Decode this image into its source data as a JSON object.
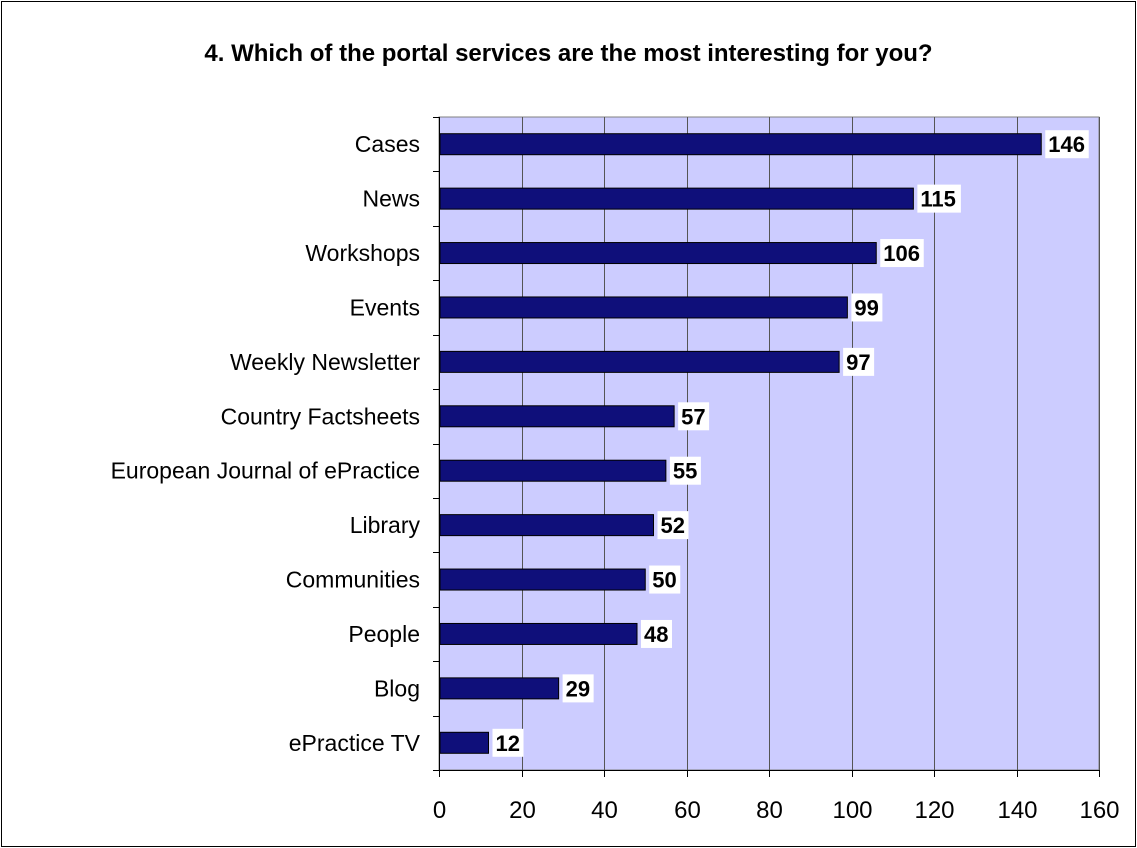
{
  "chart_data": {
    "type": "bar",
    "orientation": "horizontal",
    "title": "4. Which of the portal services are the most interesting for you?",
    "categories": [
      "Cases",
      "News",
      "Workshops",
      "Events",
      "Weekly Newsletter",
      "Country Factsheets",
      "European Journal of ePractice",
      "Library",
      "Communities",
      "People",
      "Blog",
      "ePractice TV"
    ],
    "values": [
      146,
      115,
      106,
      99,
      97,
      57,
      55,
      52,
      50,
      48,
      29,
      12
    ],
    "xlim": [
      0,
      160
    ],
    "x_ticks": [
      0,
      20,
      40,
      60,
      80,
      100,
      120,
      140,
      160
    ],
    "grid": "vertical",
    "legend": "none",
    "colors": {
      "bar": "#0f0f7a",
      "bar_outline": "#000000",
      "plot_background": "#ccccff",
      "gridline": "#555555",
      "label_background": "#ffffff"
    }
  }
}
